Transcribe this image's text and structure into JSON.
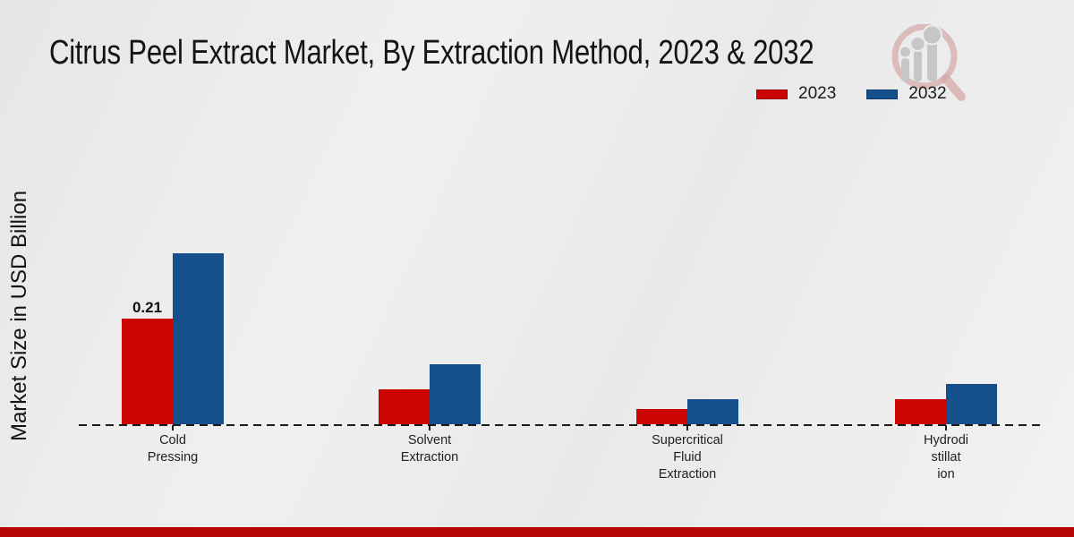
{
  "title": "Citrus Peel Extract Market, By Extraction Method, 2023 & 2032",
  "ylabel": "Market Size in USD Billion",
  "legend": {
    "items": [
      {
        "label": "2023",
        "color": "#cb0404"
      },
      {
        "label": "2032",
        "color": "#15508c"
      }
    ]
  },
  "footer": {
    "band_color": "#b70606"
  },
  "logo": {
    "name": "magnifier-bar-chart-logo",
    "bar_color": "#c6c6c6",
    "ring_color": "#d5a6a6"
  },
  "chart_data": {
    "type": "bar",
    "title": "Citrus Peel Extract Market, By Extraction Method, 2023 & 2032",
    "categories": [
      "Cold Pressing",
      "Solvent Extraction",
      "Supercritical Fluid Extraction",
      "Hydrodistillation"
    ],
    "category_label_lines": [
      [
        "Cold",
        "Pressing"
      ],
      [
        "Solvent",
        "Extraction"
      ],
      [
        "Supercritical",
        "Fluid",
        "Extraction"
      ],
      [
        "Hydrodi",
        "stillat",
        "ion"
      ]
    ],
    "series": [
      {
        "name": "2023",
        "color": "#cb0404",
        "values": [
          0.21,
          0.07,
          0.03,
          0.05
        ]
      },
      {
        "name": "2032",
        "color": "#15508c",
        "values": [
          0.34,
          0.12,
          0.05,
          0.08
        ]
      }
    ],
    "value_labels": [
      {
        "series_index": 0,
        "category_index": 0,
        "text": "0.21"
      }
    ],
    "ylabel": "Market Size in USD Billion",
    "xlabel": "",
    "ylim": [
      0,
      0.4
    ],
    "grid": false,
    "baseline_style": "dashed",
    "legend_position": "upper-right"
  }
}
